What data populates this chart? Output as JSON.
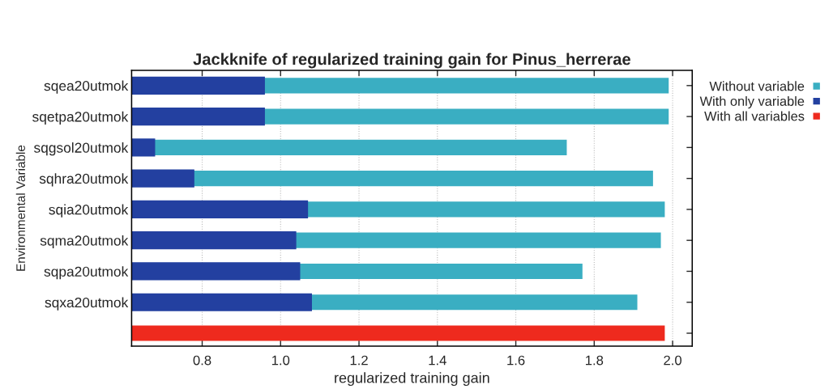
{
  "chart_data": {
    "type": "bar",
    "orientation": "horizontal",
    "title": "Jackknife of regularized training gain for Pinus_herrerae",
    "xlabel": "regularized training gain",
    "ylabel": "Environmental Variable",
    "categories": [
      "sqea20utmok",
      "sqetpa20utmok",
      "sqgsol20utmok",
      "sqhra20utmok",
      "sqia20utmok",
      "sqma20utmok",
      "sqpa20utmok",
      "sqxa20utmok",
      null
    ],
    "series": [
      {
        "name": "Without variable",
        "color": "#3aaec2",
        "values": [
          1.99,
          1.99,
          1.73,
          1.95,
          1.98,
          1.97,
          1.77,
          1.91,
          null
        ]
      },
      {
        "name": "With only variable",
        "color": "#2340a0",
        "values": [
          0.96,
          0.96,
          0.68,
          0.78,
          1.07,
          1.04,
          1.05,
          1.08,
          null
        ]
      },
      {
        "name": "With all variables",
        "color": "#ee2a1e",
        "values": [
          null,
          null,
          null,
          null,
          null,
          null,
          null,
          null,
          1.98
        ]
      }
    ],
    "xlim": [
      0.62,
      2.05
    ],
    "xticks": [
      0.8,
      {
        "value": 1.0,
        "label": "1.0"
      },
      1.2,
      1.4,
      1.6,
      1.8,
      {
        "value": 2.0,
        "label": "2.0"
      }
    ],
    "grid": "x",
    "legend": "top right"
  }
}
